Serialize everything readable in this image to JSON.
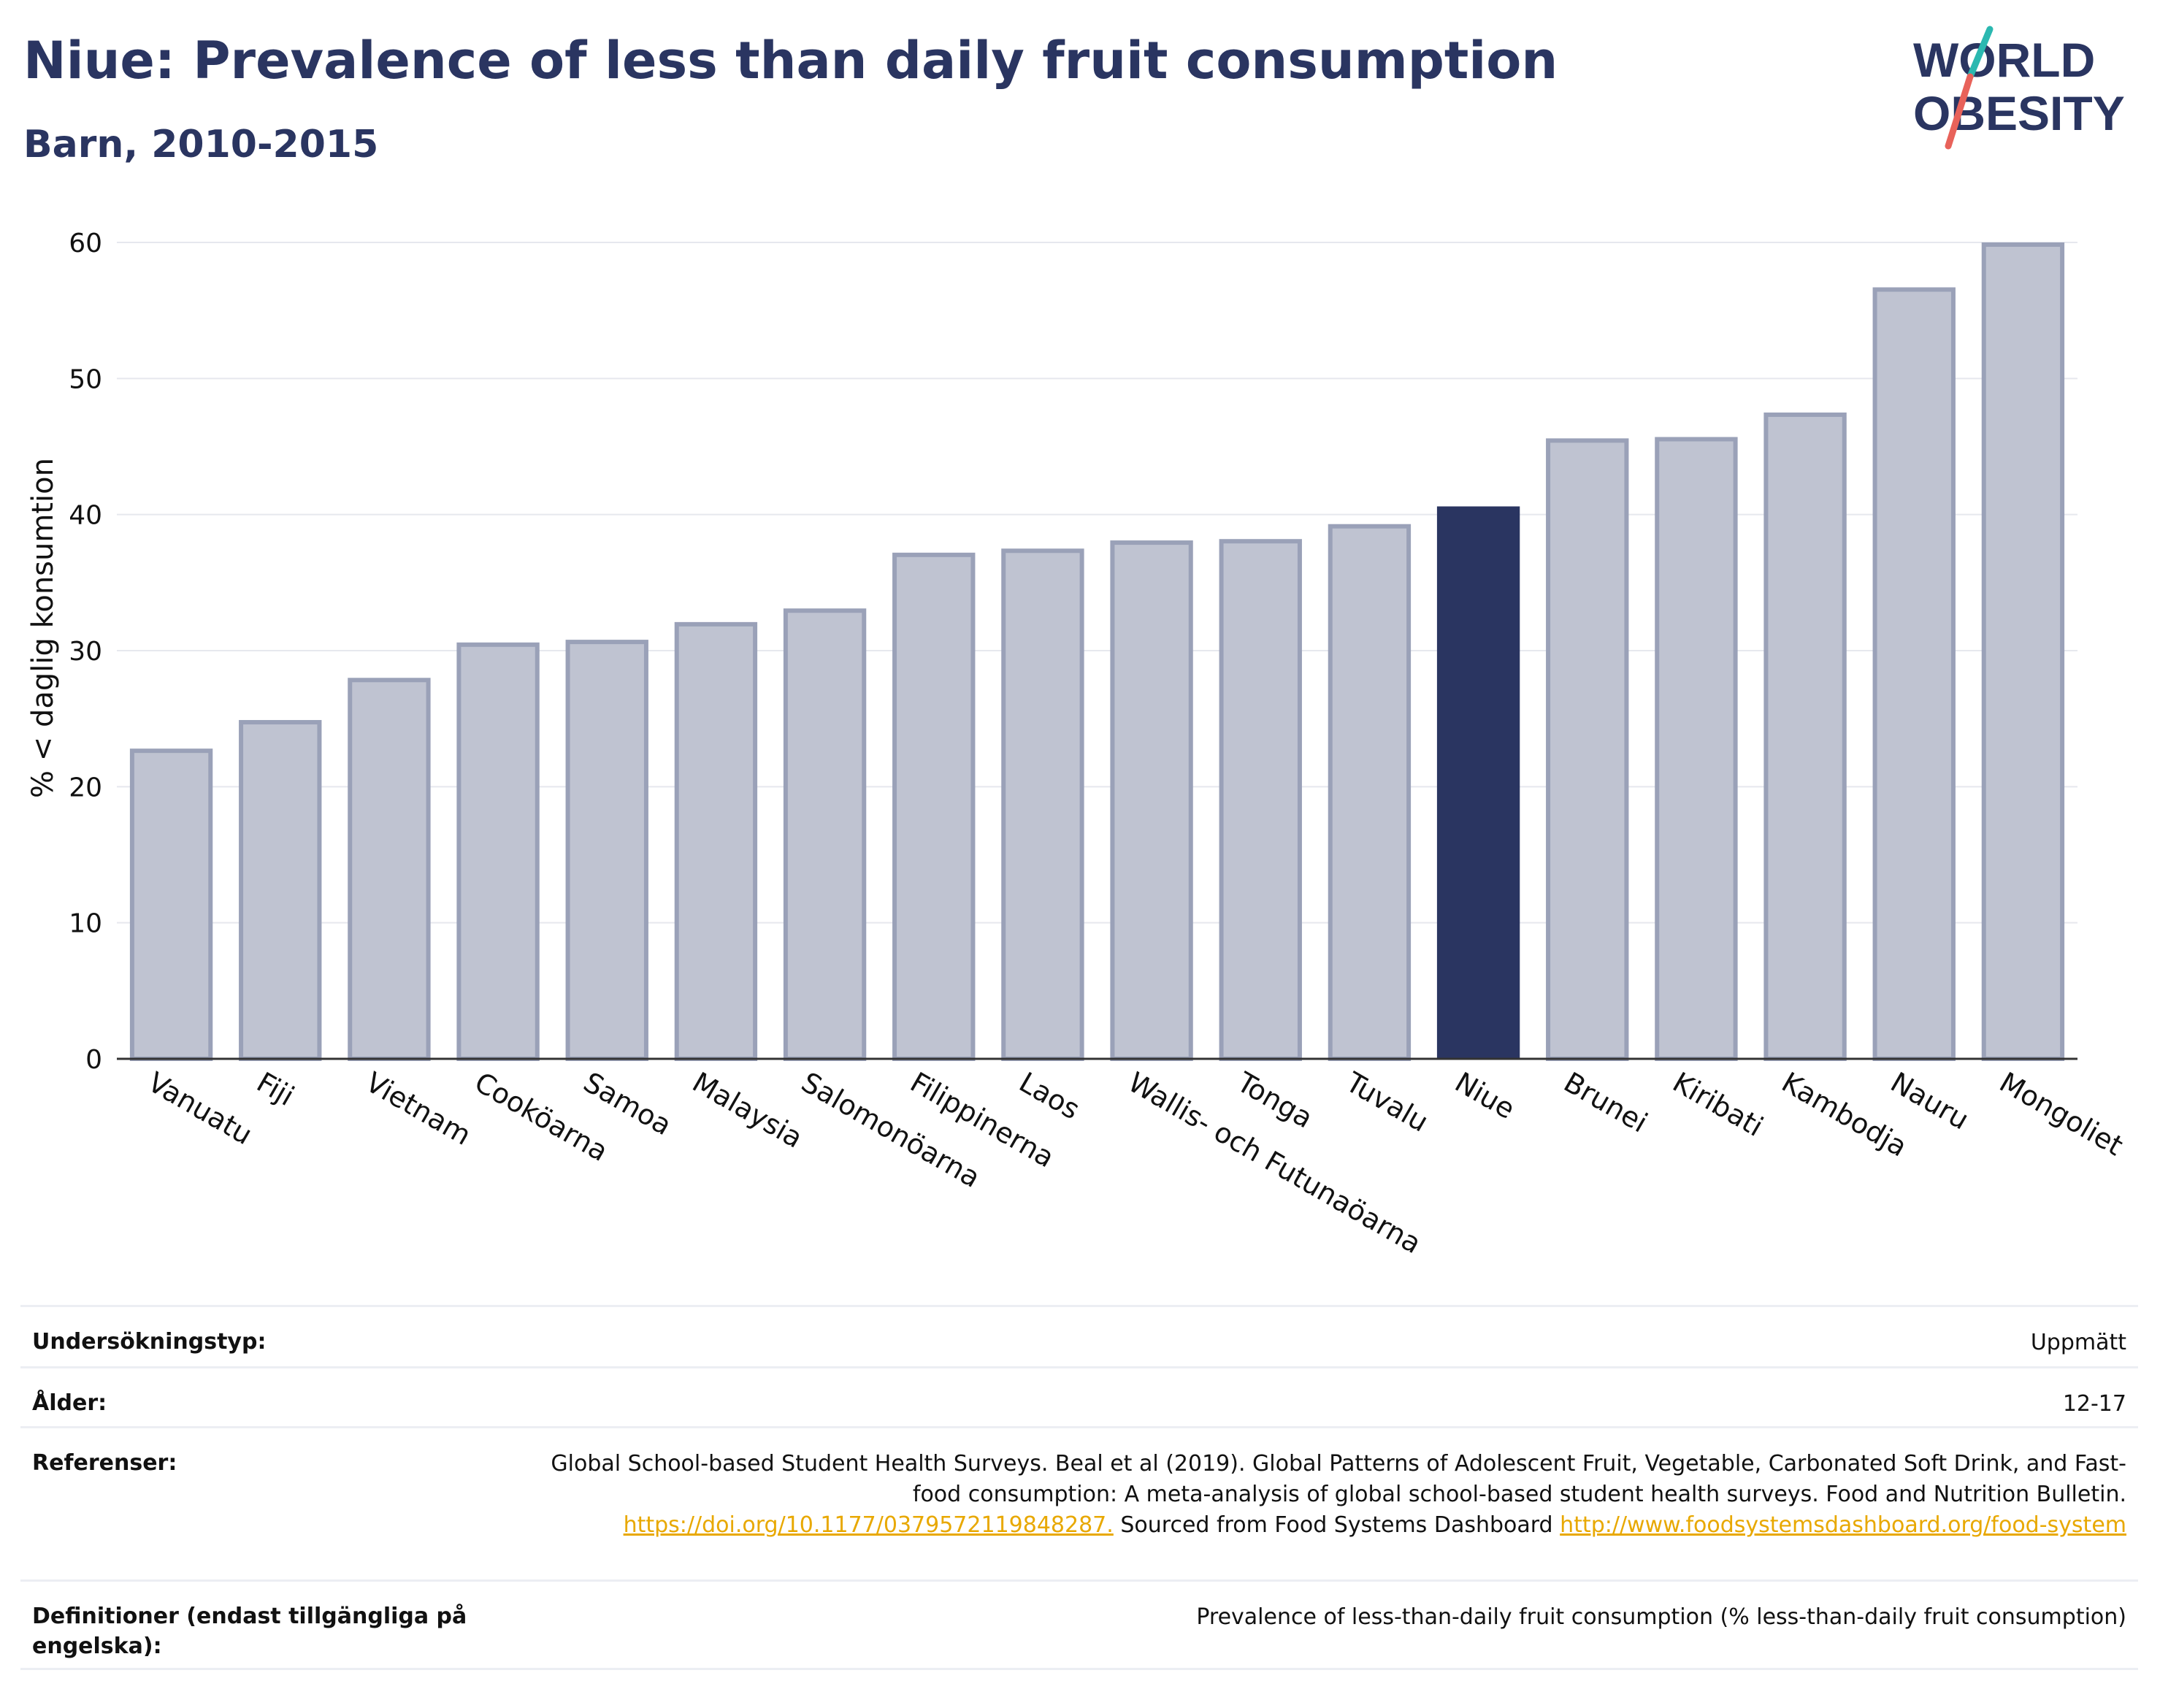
{
  "header": {
    "title": "Niue: Prevalence of less than daily fruit consumption",
    "subtitle": "Barn, 2010-2015"
  },
  "logo": {
    "line1": "WORLD",
    "line2": "OBESITY",
    "accent_teal": "#2bb8b0",
    "accent_red": "#e8625a"
  },
  "chart_data": {
    "type": "bar",
    "ylabel": "% < daglig konsumtion",
    "ylim": [
      0,
      60
    ],
    "yticks": [
      0,
      10,
      20,
      30,
      40,
      50,
      60
    ],
    "categories": [
      "Vanuatu",
      "Fiji",
      "Vietnam",
      "Cookö­arna",
      "Samoa",
      "Malaysia",
      "Salomonöarna",
      "Filippinerna",
      "Laos",
      "Wallis- och Futunaöarna",
      "Tonga",
      "Tuvalu",
      "Niue",
      "Brunei",
      "Kiribati",
      "Kambodja",
      "Nauru",
      "Mongoliet"
    ],
    "values": [
      22.8,
      24.9,
      28.0,
      30.6,
      30.8,
      32.1,
      33.1,
      37.2,
      37.5,
      38.1,
      38.2,
      39.3,
      40.6,
      45.6,
      45.7,
      47.5,
      56.7,
      60.0
    ],
    "highlight": "Niue",
    "colors": {
      "bar": "#bfc3d1",
      "bar_border": "#9aa1b8",
      "highlight": "#2a3561"
    },
    "grid": true
  },
  "info": {
    "rows": [
      {
        "label": "Undersökningstyp:",
        "value": "Uppmätt"
      },
      {
        "label": "Ålder:",
        "value": "12-17"
      },
      {
        "label": "Referenser:",
        "value_part1": "Global School-based Student Health Surveys. Beal et al (2019). Global Patterns of Adolescent Fruit, Vegetable, Carbonated Soft Drink, and Fast-food consumption: A meta-analysis of global school-based student health surveys. Food and Nutrition Bulletin.",
        "link1": "https://doi.org/10.1177/0379572119848287.",
        "value_part2": "Sourced from Food Systems Dashboard",
        "link2": "http://www.foodsystemsdashboard.org/food-system"
      },
      {
        "label": "Definitioner (endast tillgängliga på engelska):",
        "value": "Prevalence of less-than-daily fruit consumption (% less-than-daily fruit consumption)"
      }
    ]
  }
}
